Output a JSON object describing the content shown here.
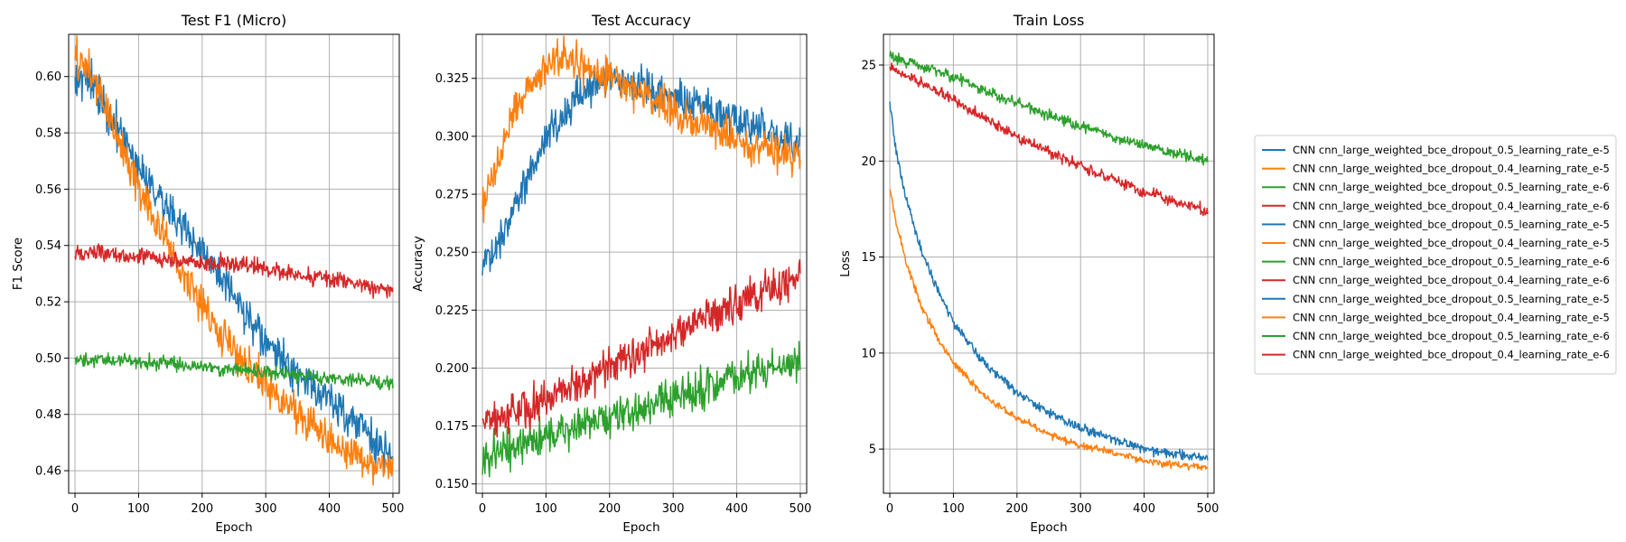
{
  "colors": {
    "blue": "#1f77b4",
    "orange": "#ff7f0e",
    "green": "#2ca02c",
    "red": "#d62728",
    "grid": "#b0b0b0",
    "axis": "#000000"
  },
  "legend": {
    "placement": "right",
    "entries": [
      {
        "label": "CNN cnn_large_weighted_bce_dropout_0.5_learning_rate_e-5",
        "color": "#1f77b4"
      },
      {
        "label": "CNN cnn_large_weighted_bce_dropout_0.4_learning_rate_e-5",
        "color": "#ff7f0e"
      },
      {
        "label": "CNN cnn_large_weighted_bce_dropout_0.5_learning_rate_e-6",
        "color": "#2ca02c"
      },
      {
        "label": "CNN cnn_large_weighted_bce_dropout_0.4_learning_rate_e-6",
        "color": "#d62728"
      },
      {
        "label": "CNN cnn_large_weighted_bce_dropout_0.5_learning_rate_e-5",
        "color": "#1f77b4"
      },
      {
        "label": "CNN cnn_large_weighted_bce_dropout_0.4_learning_rate_e-5",
        "color": "#ff7f0e"
      },
      {
        "label": "CNN cnn_large_weighted_bce_dropout_0.5_learning_rate_e-6",
        "color": "#2ca02c"
      },
      {
        "label": "CNN cnn_large_weighted_bce_dropout_0.4_learning_rate_e-6",
        "color": "#d62728"
      },
      {
        "label": "CNN cnn_large_weighted_bce_dropout_0.5_learning_rate_e-5",
        "color": "#1f77b4"
      },
      {
        "label": "CNN cnn_large_weighted_bce_dropout_0.4_learning_rate_e-5",
        "color": "#ff7f0e"
      },
      {
        "label": "CNN cnn_large_weighted_bce_dropout_0.5_learning_rate_e-6",
        "color": "#2ca02c"
      },
      {
        "label": "CNN cnn_large_weighted_bce_dropout_0.4_learning_rate_e-6",
        "color": "#d62728"
      }
    ]
  },
  "chart_data": [
    {
      "type": "line",
      "title": "Test F1 (Micro)",
      "xlabel": "Epoch",
      "ylabel": "F1 Score",
      "xlim": [
        -10,
        510
      ],
      "ylim": [
        0.452,
        0.615
      ],
      "xticks": [
        0,
        100,
        200,
        300,
        400,
        500
      ],
      "yticks": [
        0.46,
        0.48,
        0.5,
        0.52,
        0.54,
        0.56,
        0.58,
        0.6
      ],
      "tick_precision": 2,
      "grid": true,
      "series": [
        {
          "color": "#1f77b4",
          "noise": 0.0035,
          "x": [
            0,
            20,
            40,
            60,
            80,
            100,
            150,
            200,
            250,
            300,
            350,
            400,
            450,
            500
          ],
          "y": [
            0.601,
            0.599,
            0.592,
            0.584,
            0.576,
            0.569,
            0.552,
            0.538,
            0.521,
            0.505,
            0.494,
            0.485,
            0.476,
            0.463
          ]
        },
        {
          "color": "#ff7f0e",
          "noise": 0.0035,
          "x": [
            0,
            20,
            40,
            60,
            80,
            100,
            150,
            200,
            250,
            300,
            350,
            400,
            450,
            500
          ],
          "y": [
            0.606,
            0.603,
            0.594,
            0.582,
            0.571,
            0.561,
            0.538,
            0.518,
            0.503,
            0.49,
            0.481,
            0.471,
            0.464,
            0.46
          ]
        },
        {
          "color": "#2ca02c",
          "noise": 0.0012,
          "x": [
            0,
            100,
            200,
            300,
            400,
            500
          ],
          "y": [
            0.499,
            0.499,
            0.497,
            0.495,
            0.493,
            0.491
          ]
        },
        {
          "color": "#d62728",
          "noise": 0.0015,
          "x": [
            0,
            100,
            200,
            300,
            400,
            500
          ],
          "y": [
            0.538,
            0.536,
            0.534,
            0.532,
            0.528,
            0.524
          ]
        }
      ]
    },
    {
      "type": "line",
      "title": "Test Accuracy",
      "xlabel": "Epoch",
      "ylabel": "Accuracy",
      "xlim": [
        -10,
        510
      ],
      "ylim": [
        0.146,
        0.344
      ],
      "xticks": [
        0,
        100,
        200,
        300,
        400,
        500
      ],
      "yticks": [
        0.15,
        0.175,
        0.2,
        0.225,
        0.25,
        0.275,
        0.3,
        0.325
      ],
      "tick_precision": 3,
      "grid": true,
      "series": [
        {
          "color": "#1f77b4",
          "noise": 0.004,
          "x": [
            0,
            25,
            50,
            75,
            100,
            150,
            200,
            250,
            300,
            350,
            400,
            450,
            500
          ],
          "y": [
            0.243,
            0.255,
            0.27,
            0.285,
            0.3,
            0.318,
            0.325,
            0.322,
            0.318,
            0.312,
            0.307,
            0.302,
            0.297
          ]
        },
        {
          "color": "#ff7f0e",
          "noise": 0.004,
          "x": [
            0,
            25,
            50,
            75,
            100,
            130,
            150,
            200,
            250,
            300,
            350,
            400,
            450,
            500
          ],
          "y": [
            0.27,
            0.29,
            0.31,
            0.324,
            0.33,
            0.334,
            0.332,
            0.326,
            0.318,
            0.311,
            0.305,
            0.299,
            0.295,
            0.29
          ]
        },
        {
          "color": "#2ca02c",
          "noise": 0.004,
          "x": [
            0,
            100,
            200,
            300,
            400,
            500
          ],
          "y": [
            0.162,
            0.17,
            0.178,
            0.187,
            0.196,
            0.203
          ]
        },
        {
          "color": "#d62728",
          "noise": 0.004,
          "x": [
            0,
            100,
            200,
            300,
            400,
            500
          ],
          "y": [
            0.176,
            0.187,
            0.2,
            0.215,
            0.228,
            0.24
          ]
        }
      ]
    },
    {
      "type": "line",
      "title": "Train Loss",
      "xlabel": "Epoch",
      "ylabel": "Loss",
      "xlim": [
        -10,
        510
      ],
      "ylim": [
        2.7,
        26.6
      ],
      "xticks": [
        0,
        100,
        200,
        300,
        400,
        500
      ],
      "yticks": [
        5,
        10,
        15,
        20,
        25
      ],
      "tick_precision": 0,
      "grid": true,
      "series": [
        {
          "color": "#1f77b4",
          "noise": 0.12,
          "x": [
            0,
            10,
            25,
            50,
            75,
            100,
            150,
            200,
            250,
            300,
            350,
            400,
            450,
            500
          ],
          "y": [
            23.0,
            20.5,
            18.0,
            15.3,
            13.3,
            11.6,
            9.4,
            8.0,
            6.9,
            6.1,
            5.5,
            5.0,
            4.7,
            4.5
          ]
        },
        {
          "color": "#ff7f0e",
          "noise": 0.1,
          "x": [
            0,
            10,
            25,
            50,
            75,
            100,
            150,
            200,
            250,
            300,
            350,
            400,
            450,
            500
          ],
          "y": [
            18.6,
            16.8,
            14.8,
            12.4,
            10.8,
            9.5,
            7.7,
            6.6,
            5.8,
            5.2,
            4.8,
            4.4,
            4.2,
            4.0
          ]
        },
        {
          "color": "#2ca02c",
          "noise": 0.14,
          "x": [
            0,
            100,
            200,
            300,
            400,
            500
          ],
          "y": [
            25.5,
            24.4,
            23.0,
            21.8,
            20.8,
            20.0
          ]
        },
        {
          "color": "#d62728",
          "noise": 0.14,
          "x": [
            0,
            100,
            200,
            300,
            400,
            500
          ],
          "y": [
            24.9,
            23.2,
            21.3,
            19.7,
            18.4,
            17.4
          ]
        }
      ]
    }
  ]
}
